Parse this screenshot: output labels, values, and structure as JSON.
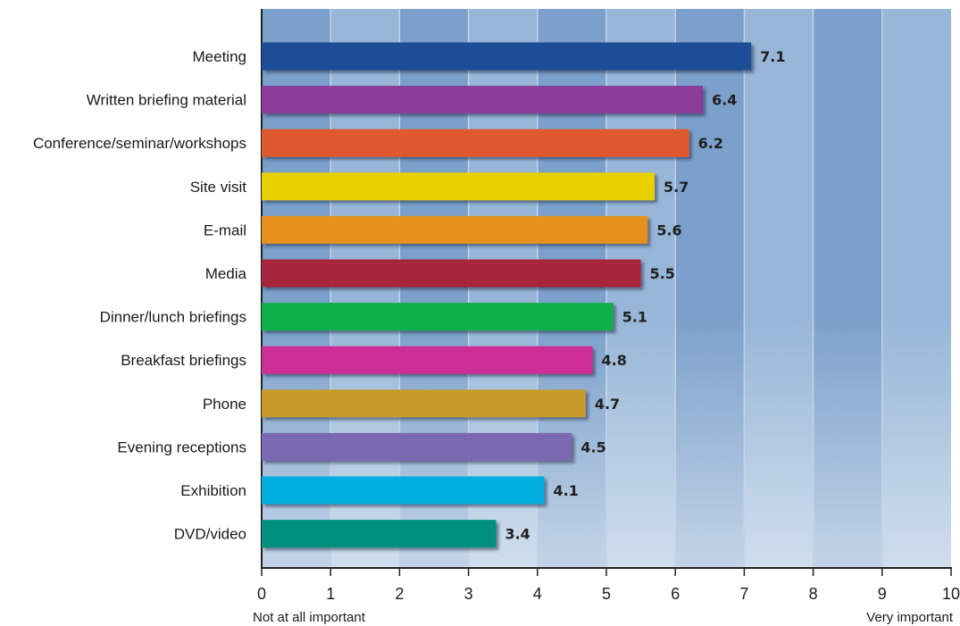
{
  "chart_data": {
    "type": "bar",
    "orientation": "horizontal",
    "categories": [
      "Meeting",
      "Written briefing material",
      "Conference/seminar/workshops",
      "Site visit",
      "E-mail",
      "Media",
      "Dinner/lunch briefings",
      "Breakfast briefings",
      "Phone",
      "Evening receptions",
      "Exhibition",
      "DVD/video"
    ],
    "values": [
      7.1,
      6.4,
      6.2,
      5.7,
      5.6,
      5.5,
      5.1,
      4.8,
      4.7,
      4.5,
      4.1,
      3.4
    ],
    "value_labels": [
      "7.1",
      "6.4",
      "6.2",
      "5.7",
      "5.6",
      "5.5",
      "5.1",
      "4.8",
      "4.7",
      "4.5",
      "4.1",
      "3.4"
    ],
    "bar_colors": [
      "#1f4e96",
      "#8b3a98",
      "#e0582e",
      "#e6d000",
      "#e8901a",
      "#a8283a",
      "#10b04a",
      "#cc2f96",
      "#c89a2c",
      "#7a68b0",
      "#00aee0",
      "#00907e"
    ],
    "xlim": [
      0,
      10
    ],
    "x_ticks": [
      "0",
      "1",
      "2",
      "3",
      "4",
      "5",
      "6",
      "7",
      "8",
      "9",
      "10"
    ],
    "x_min_label": "Not at all important",
    "x_max_label": "Very important",
    "title": "",
    "xlabel": "",
    "ylabel": "",
    "background_colors": {
      "band_dark": "#7ba0cb",
      "band_light": "#97b6d8",
      "bottom_fade": "#d3dde6"
    }
  }
}
